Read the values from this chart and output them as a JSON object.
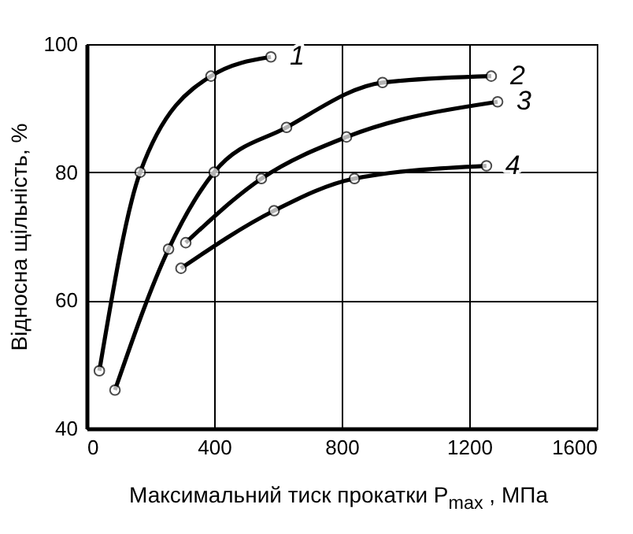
{
  "chart_data": {
    "type": "line",
    "xlabel": "Максимальний тиск прокатки P$_{max}$ ,  МПа",
    "ylabel": "Відносна щільність, %",
    "xlim": [
      0,
      1600
    ],
    "ylim": [
      40,
      100
    ],
    "xticks": [
      0,
      400,
      800,
      1200,
      1600
    ],
    "yticks": [
      40,
      60,
      80,
      100
    ],
    "grid": true,
    "marker": "circle",
    "line_style": "solid",
    "series": [
      {
        "name": "1",
        "color": "#000000",
        "x": [
          40,
          168,
          390,
          578
        ],
        "values": [
          49,
          80,
          95,
          98
        ]
      },
      {
        "name": "2",
        "color": "#000000",
        "x": [
          89,
          257,
          400,
          627,
          928,
          1269
        ],
        "values": [
          46,
          68,
          80,
          87,
          94,
          95
        ]
      },
      {
        "name": "3",
        "color": "#000000",
        "x": [
          311,
          548,
          815,
          1289
        ],
        "values": [
          69,
          79,
          85.5,
          91
        ]
      },
      {
        "name": "4",
        "color": "#000000",
        "x": [
          296,
          588,
          840,
          1254
        ],
        "values": [
          65,
          74,
          79,
          81
        ]
      }
    ]
  }
}
